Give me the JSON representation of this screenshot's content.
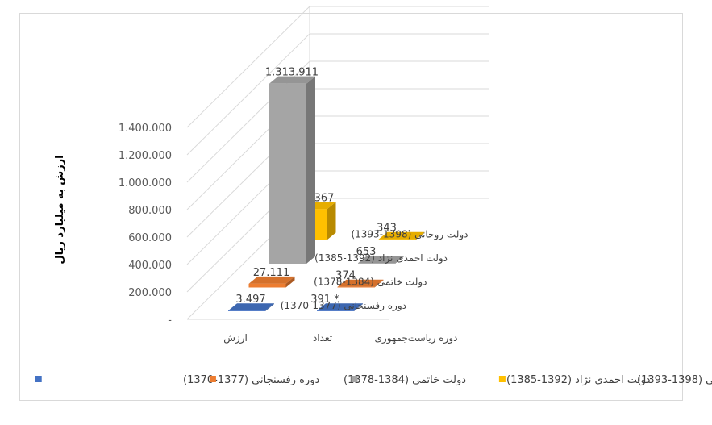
{
  "chart_data": {
    "type": "bar",
    "title": "",
    "ylabel": "ارزش به میلیارد ریال",
    "categories": [
      "ارزش",
      "تعداد"
    ],
    "depth_axis_title": "دوره ریاست‌جمهوری",
    "yticks": [
      "-",
      "200.000",
      "400.000",
      "600.000",
      "800.000",
      "1.000.000",
      "1.200.000",
      "1.400.000"
    ],
    "ylim": [
      0,
      1400000
    ],
    "series": [
      {
        "name": "دوره رفسنجانی (1377-1370)",
        "depth_label": "دوره رفسنجانی (1377-1370)",
        "color": "#4472c4",
        "values": [
          3497,
          391
        ],
        "value_labels": [
          "3.497",
          "391 *"
        ]
      },
      {
        "name": "دولت خاتمی (1384-1378)",
        "depth_label": "دولت خاتمی (1384-1378)",
        "color": "#ed7d31",
        "values": [
          27111,
          374
        ],
        "value_labels": [
          "27.111",
          "374"
        ]
      },
      {
        "name": "دولت احمدی نژاد (1392-1385)",
        "depth_label": "دولت احمدی نژاد (1392-1385)",
        "color": "#a5a5a5",
        "values": [
          1313911,
          653
        ],
        "value_labels": [
          "1.313.911",
          "653"
        ]
      },
      {
        "name": "دولت روحانی (1398-1393)",
        "depth_label": "دولت روحانی (1398-1393)",
        "color": "#ffc000",
        "values": [
          224367,
          343
        ],
        "value_labels": [
          "224.367",
          "343"
        ]
      }
    ],
    "legend_position": "bottom",
    "grid": true
  }
}
